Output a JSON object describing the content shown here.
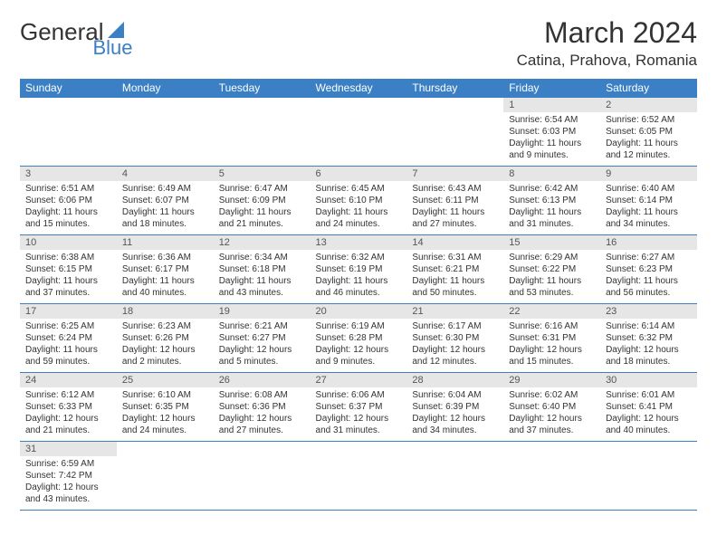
{
  "logo": {
    "text1": "General",
    "text2": "Blue",
    "shape_color": "#3b7fc4"
  },
  "title": "March 2024",
  "location": "Catina, Prahova, Romania",
  "colors": {
    "header_bg": "#3b7fc4",
    "header_fg": "#ffffff",
    "daynum_bg": "#e6e6e6",
    "border": "#3b7fc4",
    "text": "#333333"
  },
  "day_headers": [
    "Sunday",
    "Monday",
    "Tuesday",
    "Wednesday",
    "Thursday",
    "Friday",
    "Saturday"
  ],
  "weeks": [
    [
      null,
      null,
      null,
      null,
      null,
      {
        "n": "1",
        "sr": "Sunrise: 6:54 AM",
        "ss": "Sunset: 6:03 PM",
        "dl1": "Daylight: 11 hours",
        "dl2": "and 9 minutes."
      },
      {
        "n": "2",
        "sr": "Sunrise: 6:52 AM",
        "ss": "Sunset: 6:05 PM",
        "dl1": "Daylight: 11 hours",
        "dl2": "and 12 minutes."
      }
    ],
    [
      {
        "n": "3",
        "sr": "Sunrise: 6:51 AM",
        "ss": "Sunset: 6:06 PM",
        "dl1": "Daylight: 11 hours",
        "dl2": "and 15 minutes."
      },
      {
        "n": "4",
        "sr": "Sunrise: 6:49 AM",
        "ss": "Sunset: 6:07 PM",
        "dl1": "Daylight: 11 hours",
        "dl2": "and 18 minutes."
      },
      {
        "n": "5",
        "sr": "Sunrise: 6:47 AM",
        "ss": "Sunset: 6:09 PM",
        "dl1": "Daylight: 11 hours",
        "dl2": "and 21 minutes."
      },
      {
        "n": "6",
        "sr": "Sunrise: 6:45 AM",
        "ss": "Sunset: 6:10 PM",
        "dl1": "Daylight: 11 hours",
        "dl2": "and 24 minutes."
      },
      {
        "n": "7",
        "sr": "Sunrise: 6:43 AM",
        "ss": "Sunset: 6:11 PM",
        "dl1": "Daylight: 11 hours",
        "dl2": "and 27 minutes."
      },
      {
        "n": "8",
        "sr": "Sunrise: 6:42 AM",
        "ss": "Sunset: 6:13 PM",
        "dl1": "Daylight: 11 hours",
        "dl2": "and 31 minutes."
      },
      {
        "n": "9",
        "sr": "Sunrise: 6:40 AM",
        "ss": "Sunset: 6:14 PM",
        "dl1": "Daylight: 11 hours",
        "dl2": "and 34 minutes."
      }
    ],
    [
      {
        "n": "10",
        "sr": "Sunrise: 6:38 AM",
        "ss": "Sunset: 6:15 PM",
        "dl1": "Daylight: 11 hours",
        "dl2": "and 37 minutes."
      },
      {
        "n": "11",
        "sr": "Sunrise: 6:36 AM",
        "ss": "Sunset: 6:17 PM",
        "dl1": "Daylight: 11 hours",
        "dl2": "and 40 minutes."
      },
      {
        "n": "12",
        "sr": "Sunrise: 6:34 AM",
        "ss": "Sunset: 6:18 PM",
        "dl1": "Daylight: 11 hours",
        "dl2": "and 43 minutes."
      },
      {
        "n": "13",
        "sr": "Sunrise: 6:32 AM",
        "ss": "Sunset: 6:19 PM",
        "dl1": "Daylight: 11 hours",
        "dl2": "and 46 minutes."
      },
      {
        "n": "14",
        "sr": "Sunrise: 6:31 AM",
        "ss": "Sunset: 6:21 PM",
        "dl1": "Daylight: 11 hours",
        "dl2": "and 50 minutes."
      },
      {
        "n": "15",
        "sr": "Sunrise: 6:29 AM",
        "ss": "Sunset: 6:22 PM",
        "dl1": "Daylight: 11 hours",
        "dl2": "and 53 minutes."
      },
      {
        "n": "16",
        "sr": "Sunrise: 6:27 AM",
        "ss": "Sunset: 6:23 PM",
        "dl1": "Daylight: 11 hours",
        "dl2": "and 56 minutes."
      }
    ],
    [
      {
        "n": "17",
        "sr": "Sunrise: 6:25 AM",
        "ss": "Sunset: 6:24 PM",
        "dl1": "Daylight: 11 hours",
        "dl2": "and 59 minutes."
      },
      {
        "n": "18",
        "sr": "Sunrise: 6:23 AM",
        "ss": "Sunset: 6:26 PM",
        "dl1": "Daylight: 12 hours",
        "dl2": "and 2 minutes."
      },
      {
        "n": "19",
        "sr": "Sunrise: 6:21 AM",
        "ss": "Sunset: 6:27 PM",
        "dl1": "Daylight: 12 hours",
        "dl2": "and 5 minutes."
      },
      {
        "n": "20",
        "sr": "Sunrise: 6:19 AM",
        "ss": "Sunset: 6:28 PM",
        "dl1": "Daylight: 12 hours",
        "dl2": "and 9 minutes."
      },
      {
        "n": "21",
        "sr": "Sunrise: 6:17 AM",
        "ss": "Sunset: 6:30 PM",
        "dl1": "Daylight: 12 hours",
        "dl2": "and 12 minutes."
      },
      {
        "n": "22",
        "sr": "Sunrise: 6:16 AM",
        "ss": "Sunset: 6:31 PM",
        "dl1": "Daylight: 12 hours",
        "dl2": "and 15 minutes."
      },
      {
        "n": "23",
        "sr": "Sunrise: 6:14 AM",
        "ss": "Sunset: 6:32 PM",
        "dl1": "Daylight: 12 hours",
        "dl2": "and 18 minutes."
      }
    ],
    [
      {
        "n": "24",
        "sr": "Sunrise: 6:12 AM",
        "ss": "Sunset: 6:33 PM",
        "dl1": "Daylight: 12 hours",
        "dl2": "and 21 minutes."
      },
      {
        "n": "25",
        "sr": "Sunrise: 6:10 AM",
        "ss": "Sunset: 6:35 PM",
        "dl1": "Daylight: 12 hours",
        "dl2": "and 24 minutes."
      },
      {
        "n": "26",
        "sr": "Sunrise: 6:08 AM",
        "ss": "Sunset: 6:36 PM",
        "dl1": "Daylight: 12 hours",
        "dl2": "and 27 minutes."
      },
      {
        "n": "27",
        "sr": "Sunrise: 6:06 AM",
        "ss": "Sunset: 6:37 PM",
        "dl1": "Daylight: 12 hours",
        "dl2": "and 31 minutes."
      },
      {
        "n": "28",
        "sr": "Sunrise: 6:04 AM",
        "ss": "Sunset: 6:39 PM",
        "dl1": "Daylight: 12 hours",
        "dl2": "and 34 minutes."
      },
      {
        "n": "29",
        "sr": "Sunrise: 6:02 AM",
        "ss": "Sunset: 6:40 PM",
        "dl1": "Daylight: 12 hours",
        "dl2": "and 37 minutes."
      },
      {
        "n": "30",
        "sr": "Sunrise: 6:01 AM",
        "ss": "Sunset: 6:41 PM",
        "dl1": "Daylight: 12 hours",
        "dl2": "and 40 minutes."
      }
    ],
    [
      {
        "n": "31",
        "sr": "Sunrise: 6:59 AM",
        "ss": "Sunset: 7:42 PM",
        "dl1": "Daylight: 12 hours",
        "dl2": "and 43 minutes."
      },
      null,
      null,
      null,
      null,
      null,
      null
    ]
  ]
}
